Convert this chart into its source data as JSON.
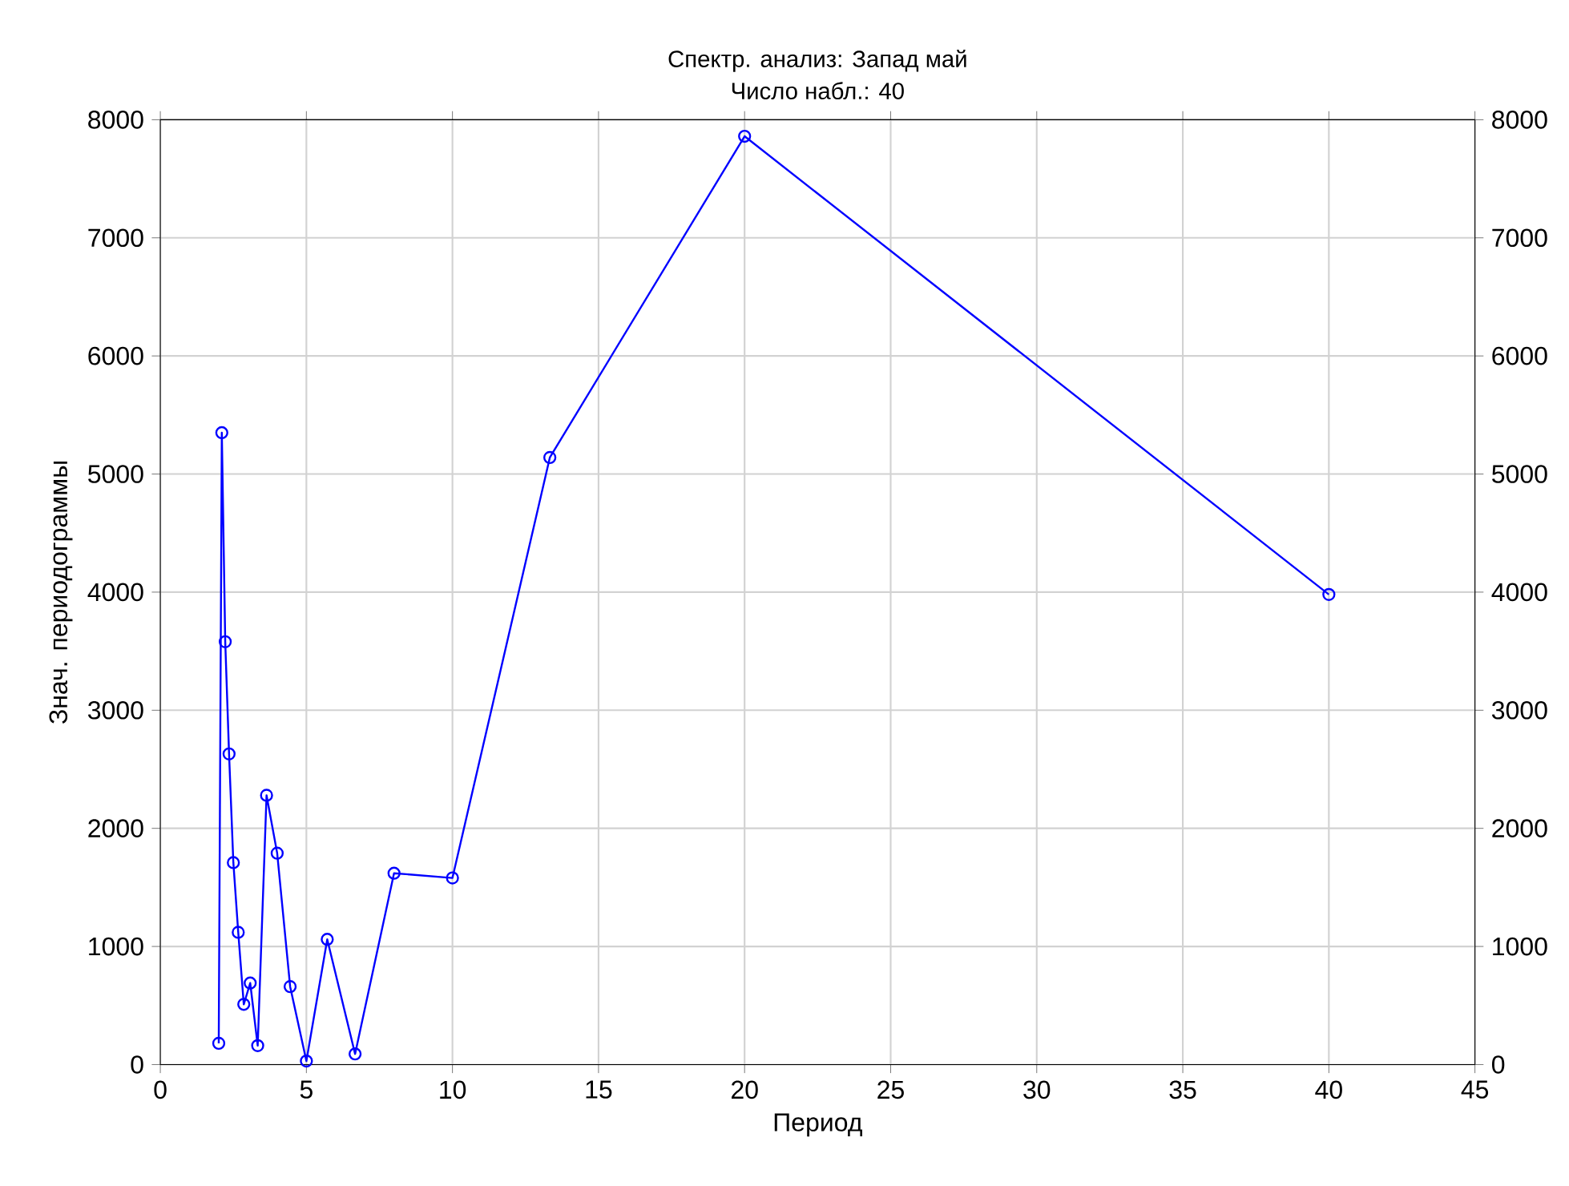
{
  "chart_data": {
    "type": "line",
    "title": "Спектр. анализ: Запад май",
    "subtitle": "Число набл.: 40",
    "xlabel": "Период",
    "ylabel": "Знач. периодограммы",
    "x": [
      2.0,
      2.105,
      2.222,
      2.353,
      2.5,
      2.667,
      2.857,
      3.077,
      3.333,
      3.636,
      4.0,
      4.444,
      5.0,
      5.714,
      6.667,
      8.0,
      10.0,
      13.333,
      20.0,
      40.0
    ],
    "series": [
      {
        "color": "#0000ff",
        "values": [
          180,
          5350,
          3580,
          2630,
          1710,
          1120,
          510,
          690,
          160,
          2280,
          1790,
          660,
          30,
          1060,
          90,
          1620,
          1580,
          5140,
          7860,
          3980
        ]
      }
    ],
    "xlim": [
      0,
      45
    ],
    "xticks": [
      0,
      5,
      10,
      15,
      20,
      25,
      30,
      35,
      40,
      45
    ],
    "ylim": [
      0,
      8000
    ],
    "yticks": [
      0,
      1000,
      2000,
      3000,
      4000,
      5000,
      6000,
      7000,
      8000
    ],
    "y2lim": [
      0,
      8000
    ],
    "y2ticks": [
      0,
      1000,
      2000,
      3000,
      4000,
      5000,
      6000,
      7000,
      8000
    ],
    "grid": true,
    "marker": "circle",
    "line_style": "solid"
  }
}
